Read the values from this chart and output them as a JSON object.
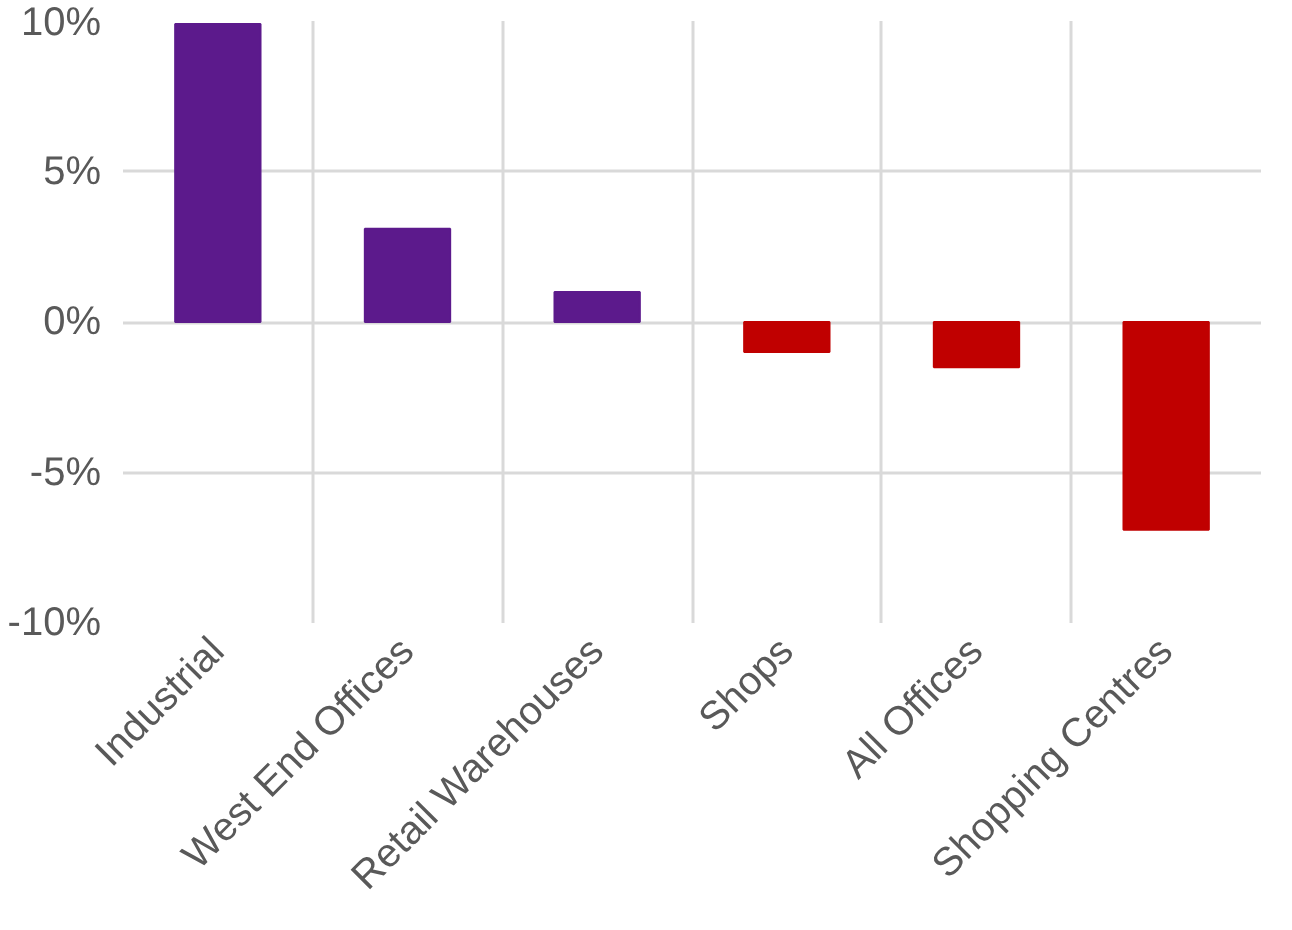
{
  "chart_data": {
    "type": "bar",
    "categories": [
      "Industrial",
      "West End Offices",
      "Retail Warehouses",
      "Shops",
      "All Offices",
      "Shopping Centres"
    ],
    "values": [
      9.9,
      3.1,
      1.0,
      -1.0,
      -1.5,
      -6.9
    ],
    "colors": [
      "#5c1a8c",
      "#5c1a8c",
      "#5c1a8c",
      "#c00000",
      "#c00000",
      "#c00000"
    ],
    "ylim": [
      -10,
      10
    ],
    "yticks": [
      {
        "value": -10,
        "label": "-10%"
      },
      {
        "value": -5,
        "label": "-5%"
      },
      {
        "value": 0,
        "label": "0%"
      },
      {
        "value": 5,
        "label": "5%"
      },
      {
        "value": 10,
        "label": "10%"
      }
    ],
    "grid": true
  }
}
